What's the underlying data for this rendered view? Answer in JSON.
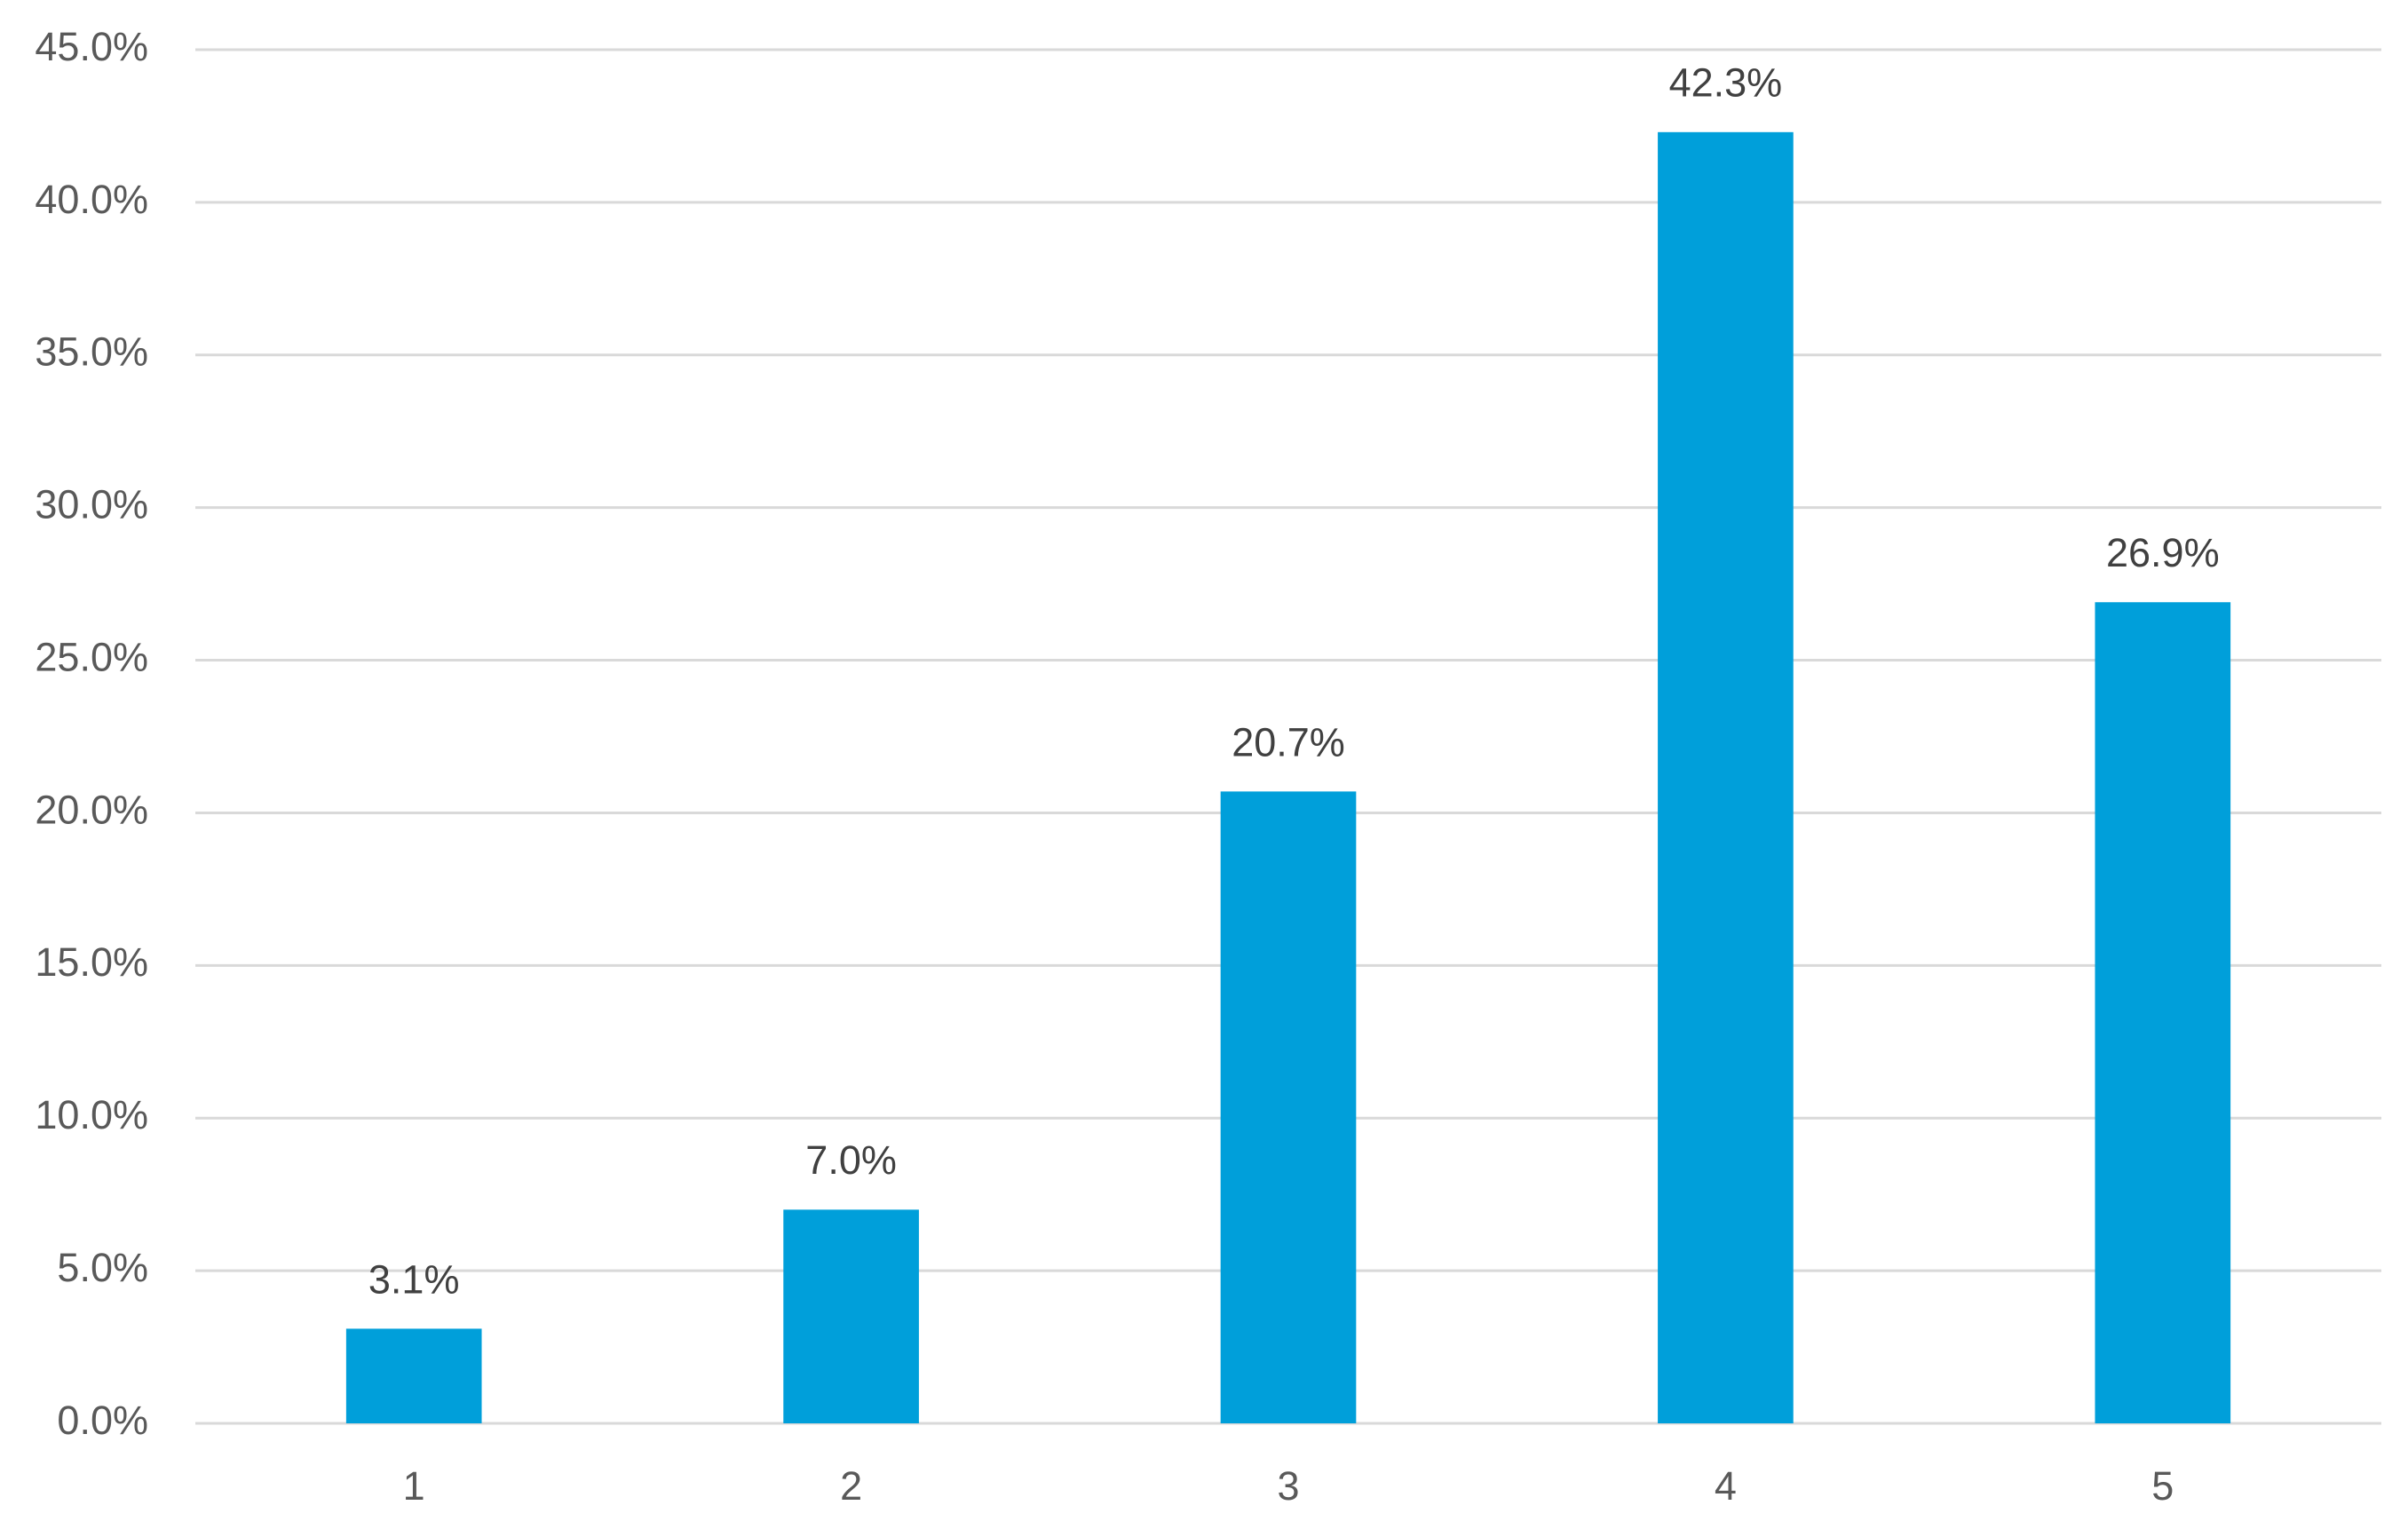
{
  "chart_data": {
    "type": "bar",
    "categories": [
      "1",
      "2",
      "3",
      "4",
      "5"
    ],
    "values": [
      3.1,
      7.0,
      20.7,
      42.3,
      26.9
    ],
    "value_labels": [
      "3.1%",
      "7.0%",
      "20.7%",
      "42.3%",
      "26.9%"
    ],
    "color": "#009fda",
    "ylim": [
      0,
      45
    ],
    "yticks": [
      {
        "value": 0,
        "label": "0.0%"
      },
      {
        "value": 5,
        "label": "5.0%"
      },
      {
        "value": 10,
        "label": "10.0%"
      },
      {
        "value": 15,
        "label": "15.0%"
      },
      {
        "value": 20,
        "label": "20.0%"
      },
      {
        "value": 25,
        "label": "25.0%"
      },
      {
        "value": 30,
        "label": "30.0%"
      },
      {
        "value": 35,
        "label": "35.0%"
      },
      {
        "value": 40,
        "label": "40.0%"
      },
      {
        "value": 45,
        "label": "45.0%"
      }
    ],
    "grid": true
  }
}
